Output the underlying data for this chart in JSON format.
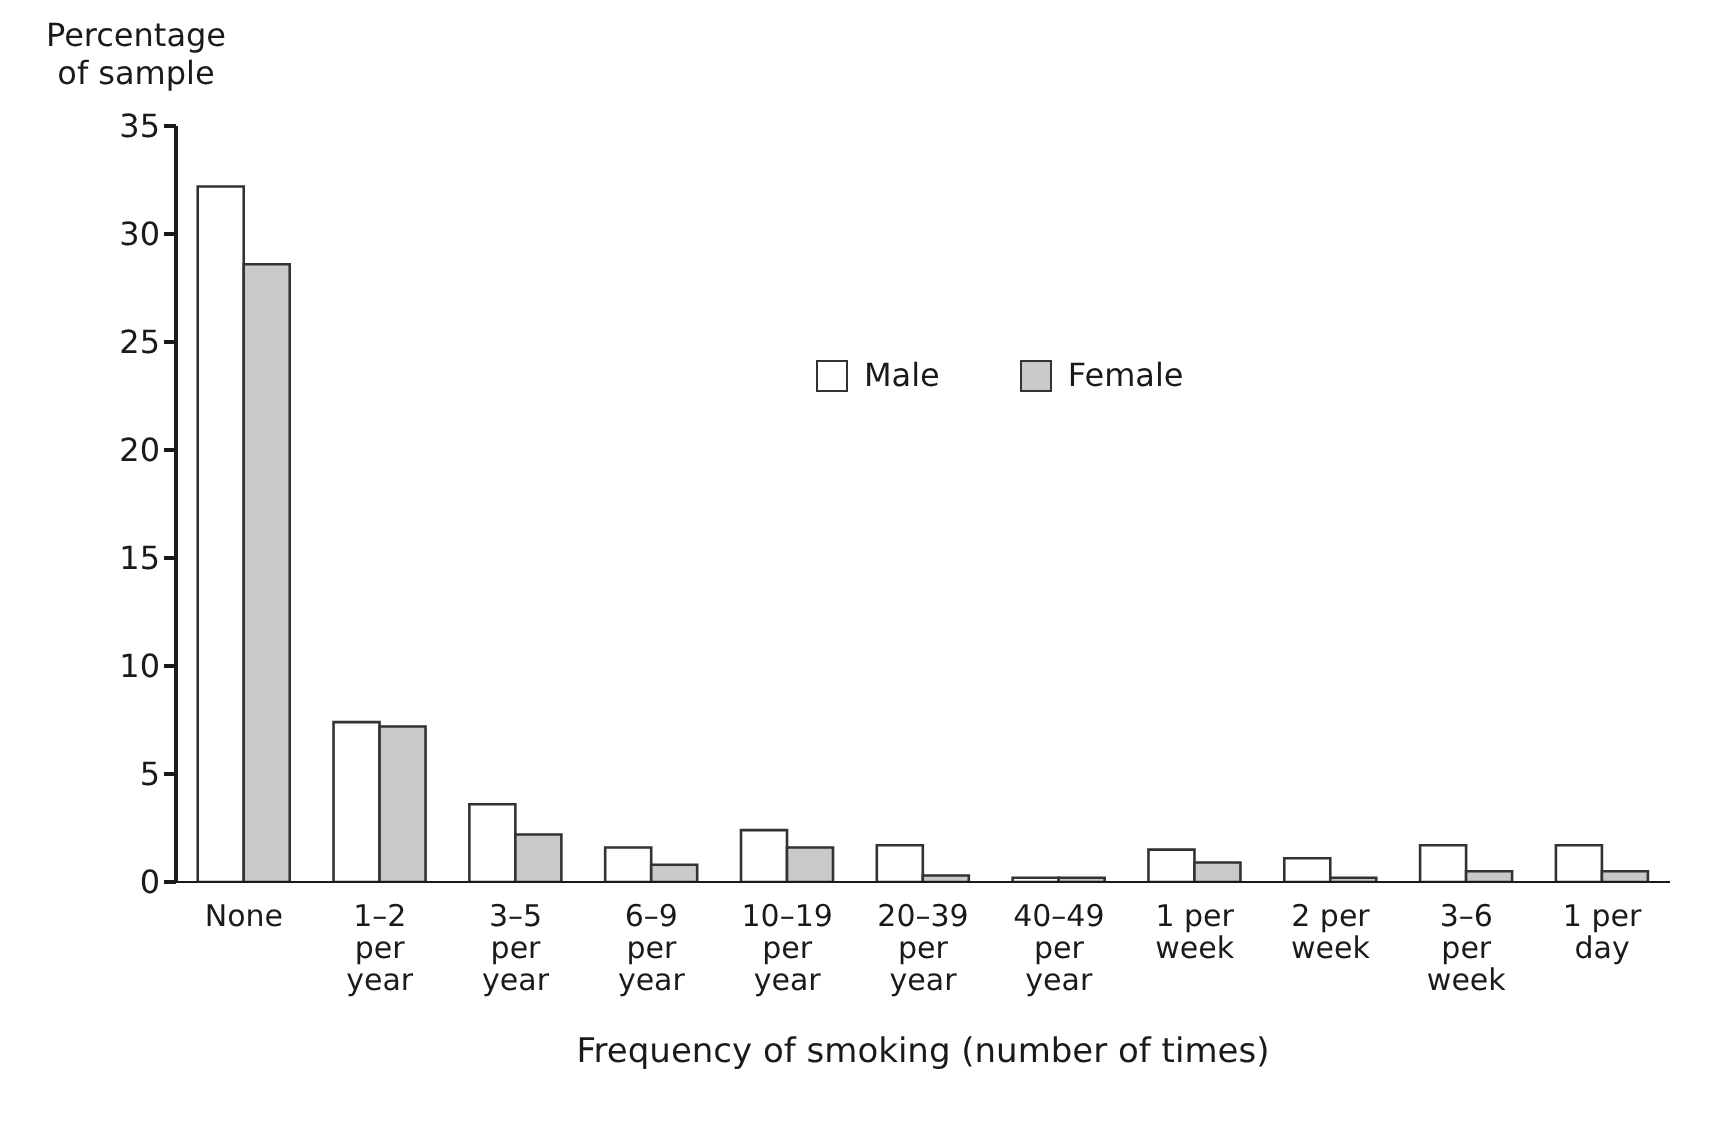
{
  "chart_data": {
    "type": "bar",
    "xlabel": "Frequency of smoking (number of times)",
    "ylabel": "Percentage\nof sample",
    "categories": [
      "None",
      "1–2\nper\nyear",
      "3–5\nper\nyear",
      "6–9\nper\nyear",
      "10–19\nper\nyear",
      "20–39\nper\nyear",
      "40–49\nper\nyear",
      "1 per\nweek",
      "2 per\nweek",
      "3–6\nper\nweek",
      "1 per\nday"
    ],
    "series": [
      {
        "name": "Male",
        "color": "#ffffff",
        "values": [
          32.2,
          7.4,
          3.6,
          1.6,
          2.4,
          1.7,
          0.2,
          1.5,
          1.1,
          1.7,
          1.7
        ]
      },
      {
        "name": "Female",
        "color": "#c8c9cb",
        "values": [
          28.6,
          7.2,
          2.2,
          0.8,
          1.6,
          0.3,
          0.2,
          0.9,
          0.2,
          0.5,
          0.5
        ]
      }
    ],
    "ylim": [
      0,
      35
    ],
    "yticks": [
      0,
      5,
      10,
      15,
      20,
      25,
      30,
      35
    ],
    "grid": false,
    "legend": "top right"
  }
}
